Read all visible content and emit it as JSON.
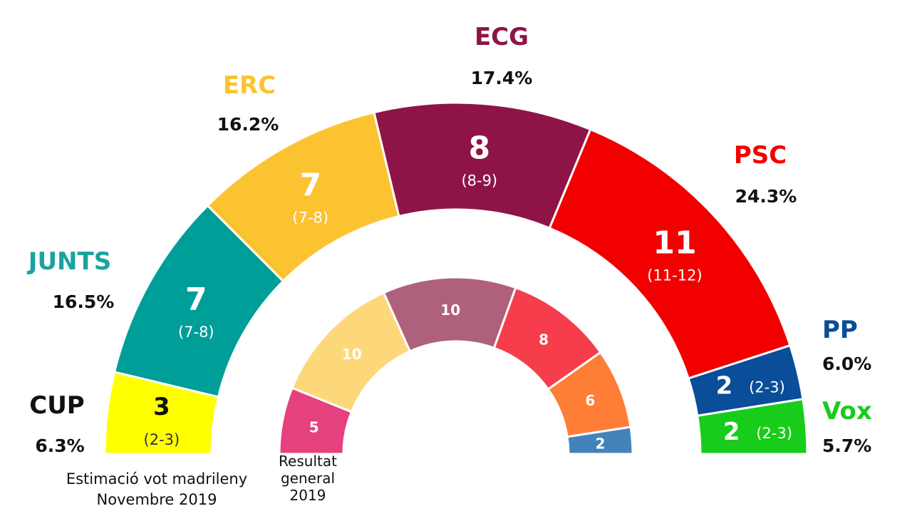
{
  "chart_data": [
    {
      "type": "pie",
      "caption": [
        "Estimació vot madrileny",
        "Novembre 2019"
      ],
      "parties": [
        {
          "name": "CUP",
          "seats": 3,
          "range": "(2-3)",
          "vote": "6.3%",
          "color": "#FFFF00",
          "name_color": "#111111",
          "seat_text": "#111111",
          "range_text": "#333333"
        },
        {
          "name": "JUNTS",
          "seats": 7,
          "range": "(7-8)",
          "vote": "16.5%",
          "color": "#009E99",
          "name_color": "#1AA39E",
          "seat_text": "#ffffff",
          "range_text": "#ffffff"
        },
        {
          "name": "ERC",
          "seats": 7,
          "range": "(7-8)",
          "vote": "16.2%",
          "color": "#FCC331",
          "name_color": "#FCC331",
          "seat_text": "#ffffff",
          "range_text": "#ffffff"
        },
        {
          "name": "ECG",
          "seats": 8,
          "range": "(8-9)",
          "vote": "17.4%",
          "color": "#8E1448",
          "name_color": "#8E1448",
          "seat_text": "#ffffff",
          "range_text": "#ffffff"
        },
        {
          "name": "PSC",
          "seats": 11,
          "range": "(11-12)",
          "vote": "24.3%",
          "color": "#F20000",
          "name_color": "#F20000",
          "seat_text": "#ffffff",
          "range_text": "#ffffff"
        },
        {
          "name": "PP",
          "seats": 2,
          "range": "(2-3)",
          "vote": "6.0%",
          "color": "#0A4D98",
          "name_color": "#0A4D98",
          "seat_text": "#ffffff",
          "range_text": "#ffffff"
        },
        {
          "name": "Vox",
          "seats": 2,
          "range": "(2-3)",
          "vote": "5.7%",
          "color": "#17CC1A",
          "name_color": "#17CC1A",
          "seat_text": "#ffffff",
          "range_text": "#ffffff"
        }
      ]
    },
    {
      "type": "pie",
      "caption": [
        "Resultat",
        "general",
        "2019"
      ],
      "parties": [
        {
          "seats": 5,
          "color": "#E5417E"
        },
        {
          "seats": 10,
          "color": "#FDD87A"
        },
        {
          "seats": 10,
          "color": "#AF607D"
        },
        {
          "seats": 8,
          "color": "#F53D4C"
        },
        {
          "seats": 6,
          "color": "#FE7E35"
        },
        {
          "seats": 2,
          "color": "#4383BC"
        }
      ]
    }
  ]
}
